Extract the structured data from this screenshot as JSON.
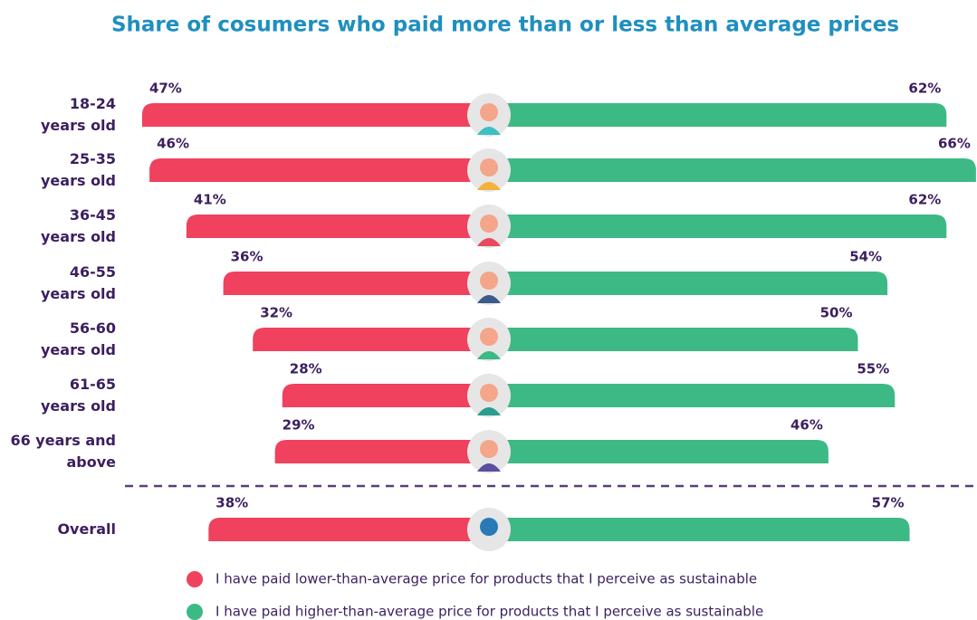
{
  "chart_data": {
    "type": "diverging-bar",
    "title": "Share of cosumers who paid more than or less than average prices",
    "categories": [
      "18-24\nyears old",
      "25-35\nyears old",
      "36-45\nyears old",
      "46-55\nyears old",
      "56-60\nyears old",
      "61-65\nyears old",
      "66 years and\nabove",
      "Overall"
    ],
    "series": [
      {
        "name": "I have paid lower-than-average price for products that I perceive as sustainable",
        "color": "#f0415e",
        "values": [
          47,
          46,
          41,
          36,
          32,
          28,
          29,
          38
        ],
        "value_labels": [
          "47%",
          "46%",
          "41%",
          "36%",
          "32%",
          "28%",
          "29%",
          "38%"
        ]
      },
      {
        "name": "I have paid higher-than-average price for products that I perceive as sustainable",
        "color": "#3db985",
        "values": [
          62,
          66,
          62,
          54,
          50,
          55,
          46,
          57
        ],
        "value_labels": [
          "62%",
          "66%",
          "62%",
          "54%",
          "50%",
          "55%",
          "46%",
          "57%"
        ]
      }
    ]
  }
}
